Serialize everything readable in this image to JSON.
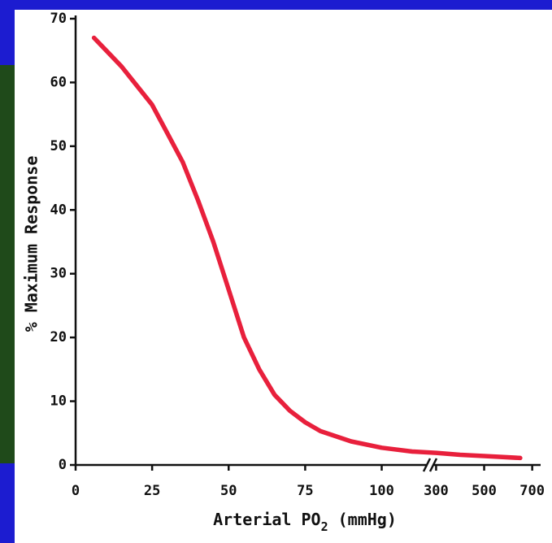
{
  "chart_data": {
    "type": "line",
    "x_label": "Arterial PO",
    "x_label_subscript": "2",
    "x_label_unit": "(mmHg)",
    "y_label": "% Maximum Response",
    "x": [
      6,
      10,
      15,
      20,
      25,
      30,
      35,
      40,
      45,
      50,
      55,
      60,
      65,
      70,
      75,
      80,
      90,
      100,
      110,
      300,
      400,
      500,
      650
    ],
    "series": [
      {
        "name": "Response",
        "color": "#e8203c",
        "values": [
          67,
          65,
          62.5,
          59.5,
          56.5,
          52,
          47.5,
          41.5,
          35,
          27.5,
          20,
          15,
          11,
          8.5,
          6.7,
          5.3,
          3.7,
          2.7,
          2.1,
          1.9,
          1.6,
          1.4,
          1.1
        ]
      }
    ],
    "xlim": [
      0,
      735
    ],
    "x_break": [
      115,
      285
    ],
    "xticks": [
      0,
      25,
      50,
      75,
      100,
      300,
      500,
      700
    ],
    "ylim": [
      0,
      70
    ],
    "yticks": [
      0,
      10,
      20,
      30,
      40,
      50,
      60,
      70
    ]
  }
}
